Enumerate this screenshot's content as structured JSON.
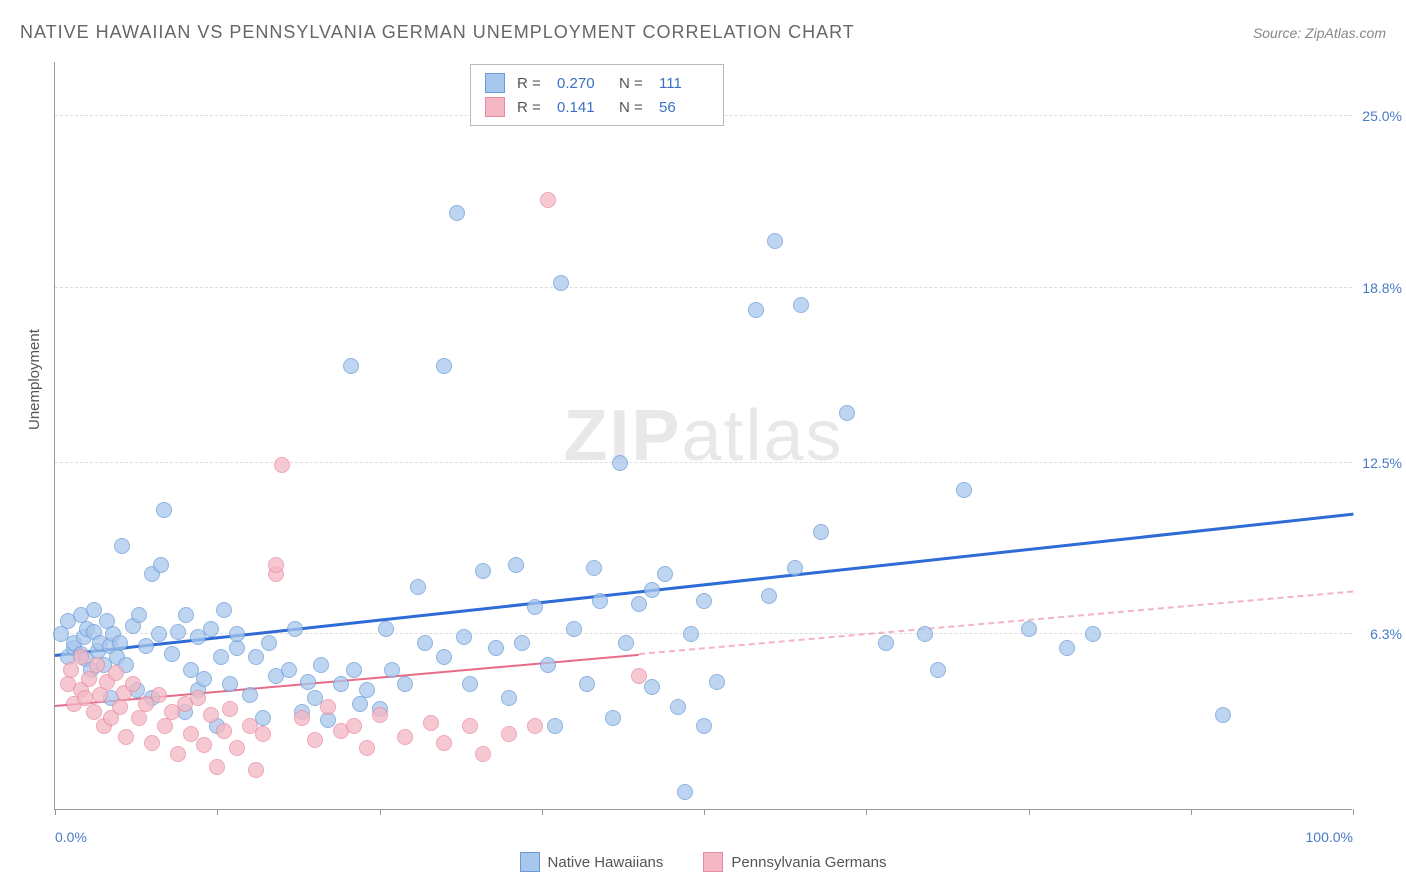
{
  "title": "NATIVE HAWAIIAN VS PENNSYLVANIA GERMAN UNEMPLOYMENT CORRELATION CHART",
  "source": "Source: ZipAtlas.com",
  "watermark_a": "ZIP",
  "watermark_b": "atlas",
  "y_axis_label": "Unemployment",
  "chart": {
    "type": "scatter",
    "xlim": [
      0,
      100
    ],
    "ylim": [
      0,
      27
    ],
    "y_ticks": [
      {
        "v": 6.3,
        "label": "6.3%"
      },
      {
        "v": 12.5,
        "label": "12.5%"
      },
      {
        "v": 18.8,
        "label": "18.8%"
      },
      {
        "v": 25.0,
        "label": "25.0%"
      }
    ],
    "x_ticks": [
      0,
      12.5,
      25,
      37.5,
      50,
      62.5,
      75,
      87.5,
      100
    ],
    "x_labels": [
      {
        "v": 0,
        "label": "0.0%"
      },
      {
        "v": 100,
        "label": "100.0%"
      }
    ],
    "background_color": "#ffffff",
    "grid_color": "#dddddd",
    "axis_color": "#999999"
  },
  "series": [
    {
      "name": "Native Hawaiians",
      "fill": "#a8c7ec",
      "stroke": "#6b9bd8",
      "marker_radius": 8,
      "marker_opacity": 0.75,
      "trend": {
        "x1": 0,
        "y1": 5.5,
        "x2": 100,
        "y2": 10.6,
        "color": "#2e6bd6",
        "width": 2.5,
        "solid_until_x": 100
      },
      "stats": {
        "R": "0.270",
        "N": "111"
      },
      "points": [
        [
          0.5,
          6.3
        ],
        [
          1,
          5.5
        ],
        [
          1,
          6.8
        ],
        [
          1.5,
          5.8
        ],
        [
          1.5,
          6.0
        ],
        [
          2,
          5.6
        ],
        [
          2,
          7.0
        ],
        [
          2.2,
          6.2
        ],
        [
          2.4,
          5.4
        ],
        [
          2.5,
          6.5
        ],
        [
          2.8,
          5.0
        ],
        [
          3,
          6.4
        ],
        [
          3,
          7.2
        ],
        [
          3.3,
          5.7
        ],
        [
          3.5,
          6.0
        ],
        [
          3.8,
          5.2
        ],
        [
          4,
          6.8
        ],
        [
          4.2,
          5.9
        ],
        [
          4.3,
          4.0
        ],
        [
          4.5,
          6.3
        ],
        [
          4.8,
          5.5
        ],
        [
          5,
          6.0
        ],
        [
          5.2,
          9.5
        ],
        [
          5.5,
          5.2
        ],
        [
          6,
          6.6
        ],
        [
          6.3,
          4.3
        ],
        [
          6.5,
          7.0
        ],
        [
          7,
          5.9
        ],
        [
          7.5,
          4.0
        ],
        [
          7.5,
          8.5
        ],
        [
          8,
          6.3
        ],
        [
          8.2,
          8.8
        ],
        [
          8.41,
          10.8
        ],
        [
          9,
          5.6
        ],
        [
          9.5,
          6.4
        ],
        [
          10,
          3.5
        ],
        [
          10.1,
          7.0
        ],
        [
          10.5,
          5.0
        ],
        [
          11,
          4.3
        ],
        [
          11,
          6.2
        ],
        [
          11.5,
          4.7
        ],
        [
          12,
          6.5
        ],
        [
          12.5,
          3.0
        ],
        [
          12.8,
          5.5
        ],
        [
          13,
          7.2
        ],
        [
          13.5,
          4.5
        ],
        [
          14,
          5.8
        ],
        [
          14,
          6.3
        ],
        [
          15,
          4.1
        ],
        [
          15.5,
          5.5
        ],
        [
          16,
          3.3
        ],
        [
          16.5,
          6.0
        ],
        [
          17,
          4.8
        ],
        [
          18,
          5.0
        ],
        [
          18.5,
          6.5
        ],
        [
          19,
          3.5
        ],
        [
          19.5,
          4.6
        ],
        [
          20,
          4.0
        ],
        [
          20.5,
          5.2
        ],
        [
          21,
          3.2
        ],
        [
          22,
          4.5
        ],
        [
          22.8,
          16.0
        ],
        [
          23,
          5.0
        ],
        [
          23.5,
          3.8
        ],
        [
          24,
          4.3
        ],
        [
          25,
          3.6
        ],
        [
          25.5,
          6.5
        ],
        [
          26,
          5.0
        ],
        [
          27,
          4.5
        ],
        [
          28,
          8.0
        ],
        [
          28.5,
          6.0
        ],
        [
          30,
          5.5
        ],
        [
          30,
          16.0
        ],
        [
          31,
          21.5
        ],
        [
          31.5,
          6.2
        ],
        [
          32,
          4.5
        ],
        [
          33,
          8.6
        ],
        [
          34,
          5.8
        ],
        [
          35,
          4.0
        ],
        [
          35.5,
          8.8
        ],
        [
          36,
          6.0
        ],
        [
          37,
          7.3
        ],
        [
          38,
          5.2
        ],
        [
          38.5,
          3.0
        ],
        [
          39,
          19.0
        ],
        [
          40,
          6.5
        ],
        [
          41,
          4.5
        ],
        [
          41.5,
          8.7
        ],
        [
          42,
          7.5
        ],
        [
          43,
          3.3
        ],
        [
          43.5,
          12.5
        ],
        [
          44,
          6.0
        ],
        [
          45,
          7.4
        ],
        [
          46,
          4.4
        ],
        [
          46,
          7.9
        ],
        [
          47,
          8.5
        ],
        [
          48,
          3.7
        ],
        [
          48.5,
          0.6
        ],
        [
          49,
          6.3
        ],
        [
          50,
          3.0
        ],
        [
          50,
          7.5
        ],
        [
          51,
          4.6
        ],
        [
          54,
          18.0
        ],
        [
          55,
          7.7
        ],
        [
          55.5,
          20.5
        ],
        [
          57,
          8.7
        ],
        [
          57.5,
          18.2
        ],
        [
          59,
          10.0
        ],
        [
          61,
          14.3
        ],
        [
          64,
          6.0
        ],
        [
          67,
          6.3
        ],
        [
          68,
          5.0
        ],
        [
          70,
          11.5
        ],
        [
          75,
          6.5
        ],
        [
          78,
          5.8
        ],
        [
          80,
          6.3
        ],
        [
          90,
          3.4
        ]
      ]
    },
    {
      "name": "Pennsylvania Germans",
      "fill": "#f4b8c4",
      "stroke": "#e98aa0",
      "marker_radius": 8,
      "marker_opacity": 0.75,
      "trend": {
        "x1": 0,
        "y1": 3.7,
        "x2": 100,
        "y2": 7.8,
        "color": "#e86b8a",
        "width": 2,
        "solid_until_x": 45
      },
      "stats": {
        "R": "0.141",
        "N": "56"
      },
      "points": [
        [
          1,
          4.5
        ],
        [
          1.2,
          5.0
        ],
        [
          1.5,
          3.8
        ],
        [
          2,
          4.3
        ],
        [
          2,
          5.5
        ],
        [
          2.3,
          4.0
        ],
        [
          2.6,
          4.7
        ],
        [
          3,
          3.5
        ],
        [
          3.2,
          5.2
        ],
        [
          3.5,
          4.1
        ],
        [
          3.8,
          3.0
        ],
        [
          4,
          4.6
        ],
        [
          4.3,
          3.3
        ],
        [
          4.7,
          4.9
        ],
        [
          5,
          3.7
        ],
        [
          5.3,
          4.2
        ],
        [
          5.5,
          2.6
        ],
        [
          6,
          4.5
        ],
        [
          6.5,
          3.3
        ],
        [
          7,
          3.8
        ],
        [
          7.5,
          2.4
        ],
        [
          8,
          4.1
        ],
        [
          8.5,
          3.0
        ],
        [
          9,
          3.5
        ],
        [
          9.5,
          2.0
        ],
        [
          10,
          3.8
        ],
        [
          10.5,
          2.7
        ],
        [
          11,
          4.0
        ],
        [
          11.5,
          2.3
        ],
        [
          12,
          3.4
        ],
        [
          12.5,
          1.5
        ],
        [
          13,
          2.8
        ],
        [
          13.5,
          3.6
        ],
        [
          14,
          2.2
        ],
        [
          15,
          3.0
        ],
        [
          15.5,
          1.4
        ],
        [
          16,
          2.7
        ],
        [
          17,
          8.5
        ],
        [
          17,
          8.8
        ],
        [
          17.5,
          12.4
        ],
        [
          19,
          3.3
        ],
        [
          20,
          2.5
        ],
        [
          21,
          3.7
        ],
        [
          22,
          2.8
        ],
        [
          23,
          3.0
        ],
        [
          24,
          2.2
        ],
        [
          25,
          3.4
        ],
        [
          27,
          2.6
        ],
        [
          29,
          3.1
        ],
        [
          30,
          2.4
        ],
        [
          32,
          3.0
        ],
        [
          33,
          2.0
        ],
        [
          35,
          2.7
        ],
        [
          37,
          3.0
        ],
        [
          38,
          22.0
        ],
        [
          45,
          4.8
        ]
      ]
    }
  ],
  "stats_labels": {
    "R": "R =",
    "N": "N ="
  },
  "legend": {
    "a": "Native Hawaiians",
    "b": "Pennsylvania Germans"
  }
}
